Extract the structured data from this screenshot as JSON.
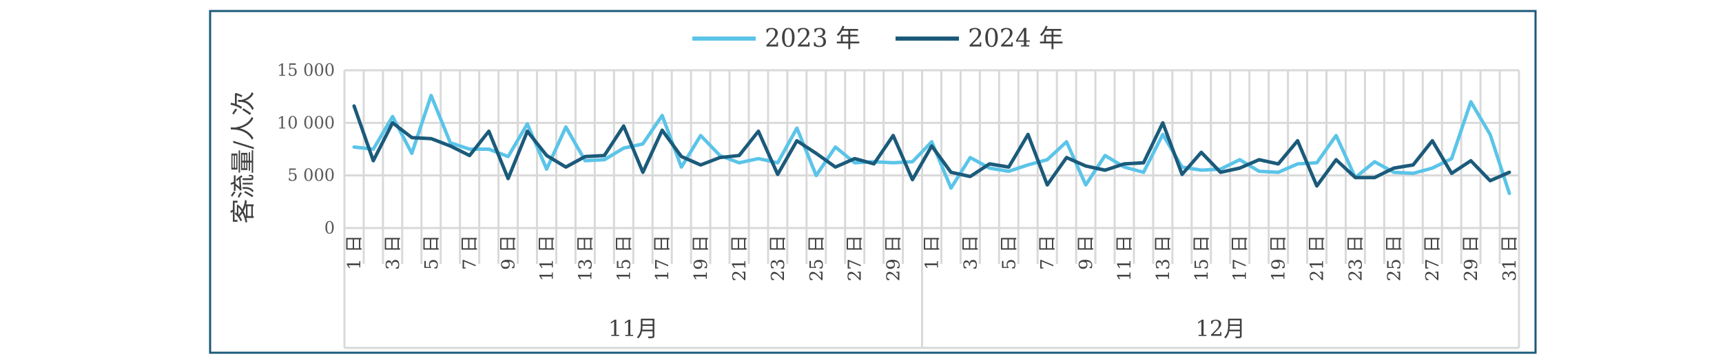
{
  "chart_data": {
    "type": "line",
    "title": "",
    "ylabel": "客流量/人次",
    "xlabel": "",
    "ylim": [
      0,
      15000
    ],
    "y_ticks": [
      0,
      5000,
      10000,
      15000
    ],
    "y_tick_labels": [
      "0",
      "5 000",
      "10 000",
      "15 000"
    ],
    "grid": "vertical and horizontal",
    "legend_position": "top-center",
    "groups": [
      {
        "label": "11月",
        "days": 30,
        "tick_labels": [
          "1 日",
          "3 日",
          "5 日",
          "7 日",
          "9 日",
          "11 日",
          "13 日",
          "15 日",
          "17 日",
          "19 日",
          "21 日",
          "23 日",
          "25 日",
          "27 日",
          "29 日"
        ]
      },
      {
        "label": "12月",
        "days": 31,
        "tick_labels": [
          "1 日",
          "3 日",
          "5 日",
          "7 日",
          "9 日",
          "11 日",
          "13 日",
          "15 日",
          "17 日",
          "19 日",
          "21 日",
          "23 日",
          "25 日",
          "27 日",
          "29 日",
          "31 日"
        ]
      }
    ],
    "series": [
      {
        "name": "2023 年",
        "color": "#5bc4e8",
        "values": [
          7700,
          7500,
          10600,
          7100,
          12600,
          8100,
          7500,
          7500,
          6800,
          9900,
          5600,
          9600,
          6400,
          6500,
          7600,
          8000,
          10700,
          5800,
          8800,
          6900,
          6200,
          6600,
          6200,
          9500,
          5000,
          7700,
          6200,
          6300,
          6200,
          6300,
          8200,
          3800,
          6700,
          5700,
          5400,
          6000,
          6500,
          8200,
          4100,
          6900,
          5800,
          5300,
          8900,
          5800,
          5500,
          5600,
          6500,
          5400,
          5300,
          6100,
          6200,
          8800,
          4800,
          6300,
          5300,
          5200,
          5700,
          6600,
          12000,
          8900,
          3300
        ]
      },
      {
        "name": "2024 年",
        "color": "#1b5a7a",
        "values": [
          11600,
          6400,
          10000,
          8600,
          8500,
          7800,
          6900,
          9200,
          4700,
          9200,
          6900,
          5800,
          6800,
          6900,
          9700,
          5300,
          9300,
          6800,
          6000,
          6700,
          6900,
          9200,
          5100,
          8300,
          7100,
          5800,
          6600,
          6100,
          8800,
          4600,
          7800,
          5300,
          4900,
          6100,
          5800,
          8900,
          4100,
          6700,
          5900,
          5500,
          6100,
          6200,
          10000,
          5100,
          7200,
          5300,
          5700,
          6500,
          6100,
          8300,
          4000,
          6500,
          4800,
          4800,
          5700,
          6000,
          8300,
          5200,
          6400,
          4500,
          5300
        ]
      }
    ]
  }
}
